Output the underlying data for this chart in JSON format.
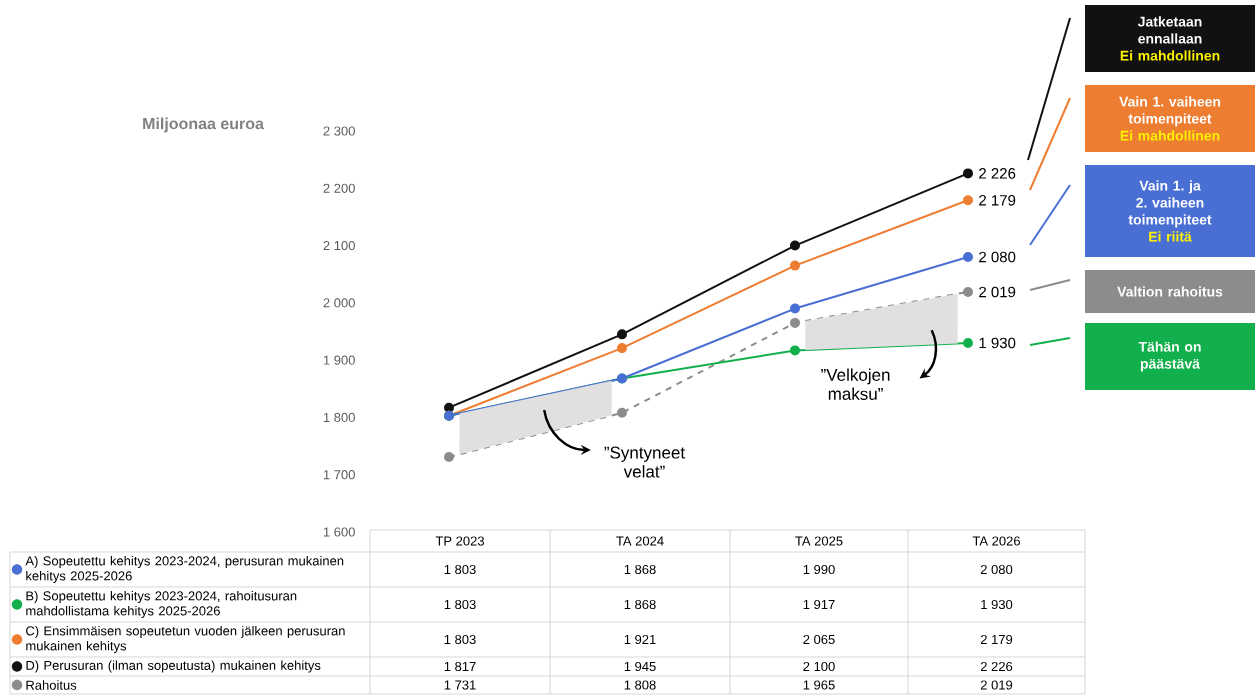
{
  "chart_data": {
    "type": "line",
    "ylabel": "Miljoonaa euroa",
    "categories": [
      "TP 2023",
      "TA 2024",
      "TA 2025",
      "TA 2026"
    ],
    "series": [
      {
        "name": "A) Sopeutettu kehitys 2023-2024, perusuran mukainen kehitys 2025-2026",
        "color": "#4a6fd4",
        "values": [
          1803,
          1868,
          1990,
          2080
        ],
        "value_labels": [
          "1 803",
          "1 868",
          "1 990",
          "2 080"
        ]
      },
      {
        "name": "B) Sopeutettu kehitys 2023-2024, rahoitusuran mahdollistama kehitys 2025-2026",
        "color": "#12b04c",
        "values": [
          1803,
          1868,
          1917,
          1930
        ],
        "value_labels": [
          "1 803",
          "1 868",
          "1 917",
          "1 930"
        ]
      },
      {
        "name": "C) Ensimmäisen sopeutetun vuoden jälkeen perusuran mukainen kehitys",
        "color": "#ed7d31",
        "values": [
          1803,
          1921,
          2065,
          2179
        ],
        "value_labels": [
          "1 803",
          "1 921",
          "2 065",
          "2 179"
        ]
      },
      {
        "name": "D) Perusuran (ilman sopeutusta) mukainen kehitys",
        "color": "#111111",
        "values": [
          1817,
          1945,
          2100,
          2226
        ],
        "value_labels": [
          "1 817",
          "1 945",
          "2 100",
          "2 226"
        ]
      },
      {
        "name": "Rahoitus",
        "color": "#8c8c8c",
        "values": [
          1731,
          1808,
          1965,
          2019
        ],
        "value_labels": [
          "1 731",
          "1 808",
          "1 965",
          "2 019"
        ],
        "line_style": "dashed"
      }
    ],
    "ylim": [
      1600,
      2300
    ],
    "yticks": [
      {
        "value": 1600,
        "label": "1 600"
      },
      {
        "value": 1700,
        "label": "1 700"
      },
      {
        "value": 1800,
        "label": "1 800"
      },
      {
        "value": 1900,
        "label": "1 900"
      },
      {
        "value": 2000,
        "label": "2 000"
      },
      {
        "value": 2100,
        "label": "2 100"
      },
      {
        "value": 2200,
        "label": "2 200"
      },
      {
        "value": 2300,
        "label": "2 300"
      }
    ],
    "marker": "circle",
    "line_style": "solid",
    "legend": "bottom",
    "data_labels": true,
    "annotations": [
      "Jatketaan ennallaan",
      "Ei mahdollinen",
      "Vain 1. vaiheen toimenpiteet",
      "Ei mahdollinen",
      "Vain 1. ja 2. vaiheen toimenpiteet",
      "Ei riitä",
      "Valtion rahoitus",
      "Tähän on päästävä",
      "”Syntyneet velat”",
      "”Velkojen maksu”"
    ]
  }
}
